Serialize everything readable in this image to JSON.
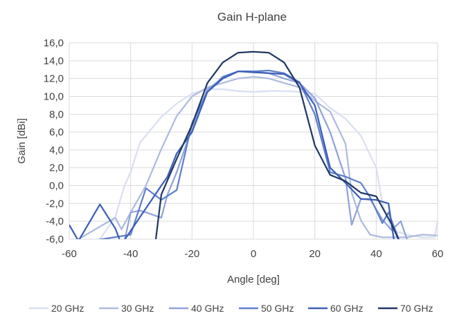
{
  "chart_data": {
    "type": "line",
    "title": "Gain H-plane",
    "xlabel": "Angle [deg]",
    "ylabel": "Gain [dBi]",
    "xlim": [
      -60,
      60
    ],
    "ylim": [
      -6,
      16
    ],
    "x_ticks": [
      "-60",
      "-40",
      "-20",
      "0",
      "20",
      "40",
      "60"
    ],
    "y_ticks": [
      "-6,0",
      "-4,0",
      "-2,0",
      "0,0",
      "2,0",
      "4,0",
      "6,0",
      "8,0",
      "10,0",
      "12,0",
      "14,0",
      "16,0"
    ],
    "grid": true,
    "legend_position": "bottom",
    "series": [
      {
        "name": "20 GHz",
        "color": "#d9dff0",
        "points": [
          [
            -60,
            -6.6
          ],
          [
            -50,
            -6.0
          ],
          [
            -45,
            -3.5
          ],
          [
            -42,
            0
          ],
          [
            -40,
            1.5
          ],
          [
            -37,
            4.8
          ],
          [
            -30,
            7.7
          ],
          [
            -25,
            9.2
          ],
          [
            -20,
            10.3
          ],
          [
            -15,
            10.8
          ],
          [
            -10,
            10.8
          ],
          [
            -5,
            10.6
          ],
          [
            0,
            10.5
          ],
          [
            5,
            10.6
          ],
          [
            10,
            10.6
          ],
          [
            15,
            10.5
          ],
          [
            20,
            10.3
          ],
          [
            25,
            8.7
          ],
          [
            30,
            7.5
          ],
          [
            35,
            5.6
          ],
          [
            40,
            2.0
          ],
          [
            42,
            -2.0
          ],
          [
            45,
            -5.0
          ],
          [
            50,
            -5.5
          ],
          [
            55,
            -5.8
          ],
          [
            59,
            -5.8
          ],
          [
            60,
            -3.9
          ]
        ]
      },
      {
        "name": "30 GHz",
        "color": "#aebbe0",
        "points": [
          [
            -60,
            -6.6
          ],
          [
            -45,
            -3.6
          ],
          [
            -43,
            -4.9
          ],
          [
            -40,
            -3.0
          ],
          [
            -35,
            0.0
          ],
          [
            -30,
            4.1
          ],
          [
            -25,
            7.8
          ],
          [
            -20,
            10.0
          ],
          [
            -15,
            11.0
          ],
          [
            -10,
            11.5
          ],
          [
            -5,
            12.0
          ],
          [
            0,
            12.2
          ],
          [
            5,
            12.0
          ],
          [
            10,
            11.5
          ],
          [
            15,
            11.0
          ],
          [
            20,
            9.5
          ],
          [
            25,
            8.3
          ],
          [
            30,
            4.7
          ],
          [
            32,
            -0.8
          ],
          [
            35,
            -3.9
          ],
          [
            38,
            -5.5
          ],
          [
            42,
            -5.8
          ],
          [
            45,
            -5.8
          ],
          [
            50,
            -5.8
          ],
          [
            55,
            -5.5
          ],
          [
            60,
            -5.6
          ]
        ]
      },
      {
        "name": "40 GHz",
        "color": "#8fa3d8",
        "points": [
          [
            -60,
            -6.6
          ],
          [
            -42,
            -6.2
          ],
          [
            -40,
            -3.0
          ],
          [
            -37,
            -2.8
          ],
          [
            -35,
            -3.0
          ],
          [
            -30,
            -3.6
          ],
          [
            -28,
            -1.0
          ],
          [
            -25,
            1.5
          ],
          [
            -20,
            6.5
          ],
          [
            -15,
            10.8
          ],
          [
            -10,
            12.0
          ],
          [
            -5,
            12.8
          ],
          [
            0,
            12.8
          ],
          [
            5,
            12.6
          ],
          [
            10,
            12.0
          ],
          [
            15,
            11.5
          ],
          [
            20,
            9.8
          ],
          [
            25,
            6.0
          ],
          [
            30,
            0.8
          ],
          [
            32,
            -4.4
          ],
          [
            35,
            -1.5
          ],
          [
            38,
            -1.5
          ],
          [
            42,
            -3.8
          ],
          [
            45,
            -5.0
          ],
          [
            48,
            -4.0
          ],
          [
            50,
            -6.0
          ],
          [
            55,
            -6.6
          ]
        ]
      },
      {
        "name": "50 GHz",
        "color": "#5f7fcc",
        "points": [
          [
            -60,
            -6.6
          ],
          [
            -40,
            -5.5
          ],
          [
            -35,
            -0.3
          ],
          [
            -30,
            -1.6
          ],
          [
            -25,
            -0.5
          ],
          [
            -20,
            7.0
          ],
          [
            -15,
            10.5
          ],
          [
            -10,
            12.2
          ],
          [
            -5,
            12.8
          ],
          [
            0,
            12.8
          ],
          [
            5,
            12.9
          ],
          [
            10,
            12.6
          ],
          [
            15,
            11.6
          ],
          [
            20,
            8.0
          ],
          [
            25,
            1.5
          ],
          [
            30,
            1.0
          ],
          [
            35,
            0.3
          ],
          [
            38,
            -1.3
          ],
          [
            42,
            -4.2
          ],
          [
            44,
            -3.0
          ],
          [
            48,
            -6.6
          ]
        ]
      },
      {
        "name": "60 GHz",
        "color": "#3b5fb8",
        "points": [
          [
            -60,
            -4.4
          ],
          [
            -57,
            -6.2
          ],
          [
            -50,
            -2.1
          ],
          [
            -45,
            -4.8
          ],
          [
            -43,
            -6.6
          ],
          [
            -30,
            0.0
          ],
          [
            -28,
            1.0
          ],
          [
            -25,
            3.6
          ],
          [
            -20,
            6.0
          ],
          [
            -15,
            10.5
          ],
          [
            -10,
            12.0
          ],
          [
            -5,
            12.8
          ],
          [
            0,
            12.7
          ],
          [
            5,
            12.6
          ],
          [
            10,
            12.5
          ],
          [
            15,
            11.5
          ],
          [
            20,
            9.0
          ],
          [
            25,
            2.0
          ],
          [
            30,
            0.3
          ],
          [
            35,
            -1.5
          ],
          [
            40,
            -1.6
          ],
          [
            44,
            -2.0
          ],
          [
            46,
            -6.6
          ]
        ]
      },
      {
        "name": "70 GHz",
        "color": "#203864",
        "points": [
          [
            -32,
            -6.6
          ],
          [
            -30,
            -1.0
          ],
          [
            -25,
            3.0
          ],
          [
            -20,
            6.8
          ],
          [
            -15,
            11.5
          ],
          [
            -10,
            13.8
          ],
          [
            -5,
            14.9
          ],
          [
            0,
            15.0
          ],
          [
            5,
            14.9
          ],
          [
            10,
            13.8
          ],
          [
            15,
            11.0
          ],
          [
            20,
            4.5
          ],
          [
            25,
            1.2
          ],
          [
            30,
            0.5
          ],
          [
            35,
            -0.8
          ],
          [
            40,
            -1.2
          ],
          [
            45,
            -4.3
          ],
          [
            48,
            -6.6
          ]
        ]
      }
    ]
  }
}
